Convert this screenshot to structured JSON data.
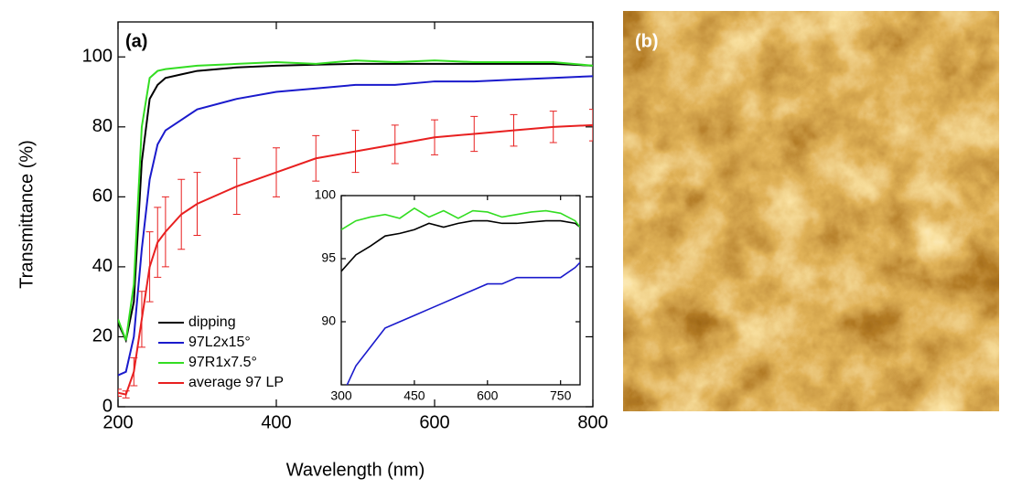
{
  "chart_data": [
    {
      "type": "line",
      "panel_label": "(a)",
      "x_label": "Wavelength (nm)",
      "y_label": "Transmittance (%)",
      "xlim": [
        200,
        800
      ],
      "xticks": [
        200,
        400,
        600,
        800
      ],
      "ylim": [
        0,
        110
      ],
      "yticks": [
        0,
        20,
        40,
        60,
        80,
        100
      ],
      "legend": "lower left",
      "x": [
        200,
        210,
        220,
        230,
        240,
        250,
        260,
        280,
        300,
        350,
        400,
        450,
        500,
        550,
        600,
        650,
        700,
        750,
        800
      ],
      "series": [
        {
          "name": "dipping",
          "color": "#000000",
          "values": [
            24,
            19,
            30,
            70,
            88,
            92,
            94,
            95,
            96,
            97,
            97.5,
            97.8,
            98,
            98,
            98,
            98,
            98,
            98,
            97.5
          ]
        },
        {
          "name": "97L2x15°",
          "color": "#1a1acc",
          "values": [
            9,
            10,
            20,
            45,
            65,
            75,
            79,
            82,
            85,
            88,
            90,
            91,
            92,
            92,
            93,
            93,
            93.5,
            94,
            94.5
          ]
        },
        {
          "name": "97R1x7.5°",
          "color": "#33dd22",
          "values": [
            25,
            19,
            35,
            80,
            94,
            96,
            96.5,
            97,
            97.5,
            98,
            98.5,
            98,
            99,
            98.5,
            99,
            98.5,
            98.5,
            98.5,
            97.5
          ]
        },
        {
          "name": "average 97 LP",
          "color": "#e82020",
          "values": [
            4,
            3.5,
            10,
            25,
            40,
            47,
            50,
            55,
            58,
            63,
            67,
            71,
            73,
            75,
            77,
            78,
            79,
            80,
            80.5
          ],
          "errors": [
            1,
            1,
            4,
            8,
            10,
            10,
            10,
            10,
            9,
            8,
            7,
            6.5,
            6,
            5.5,
            5,
            5,
            4.5,
            4.5,
            4.5
          ]
        }
      ]
    },
    {
      "type": "line",
      "xlim": [
        300,
        790
      ],
      "xticks": [
        300,
        450,
        600,
        750
      ],
      "ylim": [
        85,
        100
      ],
      "yticks": [
        90,
        95,
        100
      ],
      "x": [
        300,
        330,
        360,
        390,
        420,
        450,
        480,
        510,
        540,
        570,
        600,
        630,
        660,
        690,
        720,
        750,
        780,
        790
      ],
      "series": [
        {
          "color": "#000000",
          "values": [
            94,
            95.3,
            96,
            96.8,
            97,
            97.3,
            97.8,
            97.5,
            97.8,
            98,
            98,
            97.8,
            97.8,
            97.9,
            98,
            98,
            97.8,
            97.5
          ]
        },
        {
          "color": "#33dd22",
          "values": [
            97.3,
            98,
            98.3,
            98.5,
            98.2,
            99,
            98.3,
            98.8,
            98.2,
            98.8,
            98.7,
            98.3,
            98.5,
            98.7,
            98.8,
            98.6,
            98,
            97.5
          ]
        },
        {
          "color": "#1a1acc",
          "values": [
            84,
            86.5,
            88,
            89.5,
            90,
            90.5,
            91,
            91.5,
            92,
            92.5,
            93,
            93,
            93.5,
            93.5,
            93.5,
            93.5,
            94.3,
            94.7
          ]
        }
      ]
    }
  ],
  "image_panel": {
    "label": "(b)"
  }
}
